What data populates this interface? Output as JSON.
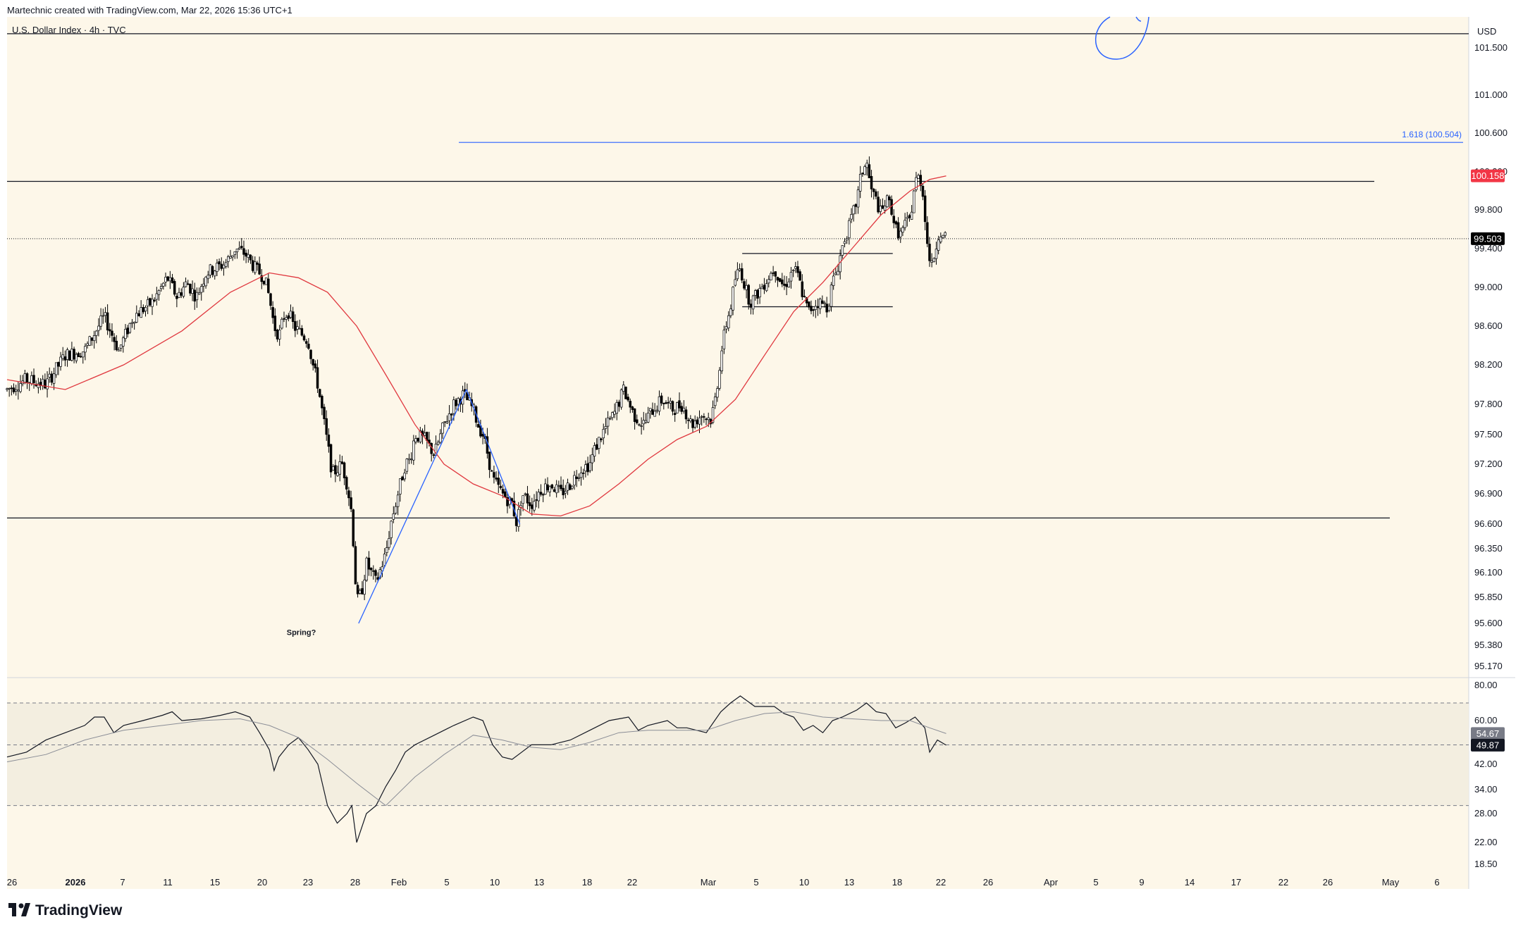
{
  "header": {
    "credit": "Martechnic created with TradingView.com, Mar 22, 2026 15:36 UTC+1",
    "symbol": "U.S. Dollar Index · 4h · TVC",
    "currency": "USD"
  },
  "footer": {
    "brand": "TradingView"
  },
  "colors": {
    "background": "#fdf7e9",
    "candle": "#000000",
    "ma": "#e0383f",
    "drawing_blue": "#2962ff",
    "price_badge": "#000000",
    "ma_badge": "#f23645",
    "rsi_band": "#f3eee0"
  },
  "chart_data": [
    {
      "type": "candlestick",
      "title": "U.S. Dollar Index · 4h · TVC",
      "ylim": [
        95.0,
        101.9
      ],
      "y_ticks": [
        "101.500",
        "101.000",
        "100.600",
        "100.200",
        "99.800",
        "99.400",
        "99.000",
        "98.600",
        "98.200",
        "97.800",
        "97.500",
        "97.200",
        "96.900",
        "96.600",
        "96.350",
        "96.100",
        "95.850",
        "95.600",
        "95.380",
        "95.170"
      ],
      "x_ticks": [
        "26",
        "2026",
        "7",
        "11",
        "15",
        "20",
        "23",
        "28",
        "Feb",
        "5",
        "10",
        "13",
        "18",
        "22",
        "Mar",
        "5",
        "10",
        "13",
        "18",
        "22",
        "26",
        "Apr",
        "5",
        "9",
        "14",
        "17",
        "22",
        "26",
        "May",
        "6"
      ],
      "close_path": [
        [
          0,
          97.95
        ],
        [
          20,
          98.05
        ],
        [
          40,
          98.0
        ],
        [
          60,
          98.3
        ],
        [
          80,
          98.35
        ],
        [
          100,
          98.7
        ],
        [
          115,
          98.35
        ],
        [
          130,
          98.7
        ],
        [
          150,
          98.85
        ],
        [
          165,
          99.1
        ],
        [
          175,
          98.9
        ],
        [
          185,
          99.05
        ],
        [
          195,
          98.9
        ],
        [
          205,
          99.15
        ],
        [
          215,
          99.2
        ],
        [
          225,
          99.25
        ],
        [
          235,
          99.4
        ],
        [
          245,
          99.35
        ],
        [
          255,
          99.2
        ],
        [
          265,
          99.1
        ],
        [
          270,
          98.9
        ],
        [
          275,
          98.6
        ],
        [
          280,
          98.5
        ],
        [
          285,
          98.7
        ],
        [
          290,
          98.75
        ],
        [
          295,
          98.6
        ],
        [
          300,
          98.55
        ],
        [
          305,
          98.5
        ],
        [
          310,
          98.45
        ],
        [
          315,
          98.2
        ],
        [
          320,
          98.0
        ],
        [
          325,
          97.7
        ],
        [
          330,
          97.4
        ],
        [
          335,
          97.1
        ],
        [
          340,
          97.15
        ],
        [
          345,
          97.2
        ],
        [
          350,
          97.0
        ],
        [
          355,
          96.7
        ],
        [
          360,
          95.8
        ],
        [
          365,
          95.9
        ],
        [
          370,
          96.2
        ],
        [
          380,
          96.0
        ],
        [
          390,
          96.3
        ],
        [
          395,
          96.6
        ],
        [
          400,
          96.8
        ],
        [
          405,
          97.0
        ],
        [
          410,
          97.2
        ],
        [
          415,
          97.25
        ],
        [
          420,
          97.5
        ],
        [
          430,
          97.45
        ],
        [
          440,
          97.3
        ],
        [
          450,
          97.6
        ],
        [
          460,
          97.8
        ],
        [
          470,
          97.9
        ],
        [
          480,
          97.75
        ],
        [
          485,
          97.6
        ],
        [
          490,
          97.5
        ],
        [
          495,
          97.3
        ],
        [
          500,
          97.05
        ],
        [
          510,
          96.9
        ],
        [
          520,
          96.8
        ],
        [
          525,
          96.6
        ],
        [
          530,
          96.9
        ],
        [
          540,
          96.8
        ],
        [
          550,
          96.95
        ],
        [
          560,
          97.0
        ],
        [
          570,
          96.9
        ],
        [
          580,
          97.0
        ],
        [
          590,
          97.15
        ],
        [
          600,
          97.2
        ],
        [
          605,
          97.35
        ],
        [
          615,
          97.55
        ],
        [
          625,
          97.7
        ],
        [
          635,
          97.95
        ],
        [
          645,
          97.7
        ],
        [
          655,
          97.6
        ],
        [
          665,
          97.75
        ],
        [
          675,
          97.85
        ],
        [
          685,
          97.75
        ],
        [
          695,
          97.8
        ],
        [
          705,
          97.6
        ],
        [
          715,
          97.7
        ],
        [
          725,
          97.65
        ],
        [
          730,
          97.9
        ],
        [
          735,
          98.3
        ],
        [
          740,
          98.6
        ],
        [
          745,
          98.8
        ],
        [
          750,
          99.1
        ],
        [
          755,
          99.2
        ],
        [
          760,
          99.0
        ],
        [
          765,
          98.85
        ],
        [
          770,
          98.9
        ],
        [
          780,
          99.05
        ],
        [
          790,
          99.2
        ],
        [
          800,
          99.0
        ],
        [
          810,
          99.2
        ],
        [
          815,
          99.1
        ],
        [
          820,
          98.9
        ],
        [
          825,
          98.75
        ],
        [
          835,
          98.85
        ],
        [
          845,
          98.8
        ],
        [
          850,
          99.05
        ],
        [
          855,
          99.2
        ],
        [
          862,
          99.5
        ],
        [
          868,
          99.65
        ],
        [
          875,
          99.9
        ],
        [
          880,
          100.2
        ],
        [
          885,
          100.3
        ],
        [
          890,
          100.0
        ],
        [
          895,
          99.9
        ],
        [
          900,
          99.75
        ],
        [
          905,
          99.9
        ],
        [
          910,
          99.85
        ],
        [
          915,
          99.6
        ],
        [
          920,
          99.55
        ],
        [
          925,
          99.65
        ],
        [
          930,
          99.7
        ],
        [
          935,
          100.1
        ],
        [
          940,
          100.15
        ],
        [
          944,
          99.9
        ],
        [
          948,
          99.4
        ],
        [
          952,
          99.2
        ],
        [
          956,
          99.4
        ],
        [
          960,
          99.6
        ],
        [
          964,
          99.5
        ],
        [
          967,
          99.503
        ]
      ],
      "ma_path": [
        [
          0,
          98.05
        ],
        [
          60,
          97.95
        ],
        [
          120,
          98.2
        ],
        [
          180,
          98.55
        ],
        [
          230,
          98.95
        ],
        [
          270,
          99.15
        ],
        [
          300,
          99.1
        ],
        [
          330,
          98.95
        ],
        [
          360,
          98.6
        ],
        [
          390,
          98.1
        ],
        [
          420,
          97.6
        ],
        [
          450,
          97.2
        ],
        [
          480,
          97.0
        ],
        [
          510,
          96.88
        ],
        [
          540,
          96.7
        ],
        [
          570,
          96.68
        ],
        [
          600,
          96.78
        ],
        [
          630,
          97.0
        ],
        [
          660,
          97.25
        ],
        [
          690,
          97.45
        ],
        [
          720,
          97.58
        ],
        [
          750,
          97.85
        ],
        [
          780,
          98.3
        ],
        [
          810,
          98.75
        ],
        [
          840,
          99.05
        ],
        [
          870,
          99.4
        ],
        [
          900,
          99.75
        ],
        [
          930,
          100.0
        ],
        [
          950,
          100.12
        ],
        [
          967,
          100.158
        ]
      ],
      "candle_x_range": [
        0,
        967
      ],
      "ma_badge": "100.158",
      "current_price": "99.503",
      "horizontal_levels": [
        {
          "name": "top-resistance",
          "price": 101.65
        },
        {
          "name": "upper-resistance",
          "price": 100.1
        },
        {
          "name": "lower-support",
          "price": 96.66
        }
      ],
      "range_boxes": [
        {
          "top": 99.35,
          "bottom": 98.8,
          "x_start": 757,
          "x_end": 912
        }
      ],
      "fib_level": {
        "label": "1.618 (100.504)",
        "price": 100.504
      },
      "swing_lines": [
        {
          "from": [
            362,
            95.6
          ],
          "to": [
            473,
            97.95
          ]
        },
        {
          "from": [
            473,
            97.95
          ],
          "to": [
            528,
            96.6
          ]
        }
      ],
      "annotation": {
        "text": "Spring?",
        "x": 303,
        "price": 95.52
      }
    },
    {
      "type": "line",
      "name": "RSI",
      "ylim": [
        16,
        82
      ],
      "y_ticks": [
        "80.00",
        "60.00",
        "42.00",
        "34.00",
        "28.00",
        "22.00",
        "18.50"
      ],
      "upper_band": 70,
      "lower_band": 30,
      "midline": 50,
      "rsi_path": [
        [
          0,
          45
        ],
        [
          20,
          47
        ],
        [
          40,
          52
        ],
        [
          60,
          55
        ],
        [
          80,
          58
        ],
        [
          90,
          62
        ],
        [
          100,
          62
        ],
        [
          110,
          55
        ],
        [
          120,
          58
        ],
        [
          140,
          60
        ],
        [
          160,
          63
        ],
        [
          170,
          65
        ],
        [
          180,
          60
        ],
        [
          200,
          61
        ],
        [
          220,
          63
        ],
        [
          235,
          65
        ],
        [
          250,
          62
        ],
        [
          260,
          55
        ],
        [
          270,
          48
        ],
        [
          275,
          40
        ],
        [
          280,
          45
        ],
        [
          290,
          50
        ],
        [
          300,
          53
        ],
        [
          310,
          48
        ],
        [
          320,
          42
        ],
        [
          330,
          30
        ],
        [
          340,
          26
        ],
        [
          350,
          28
        ],
        [
          355,
          30
        ],
        [
          360,
          22
        ],
        [
          370,
          28
        ],
        [
          380,
          30
        ],
        [
          390,
          35
        ],
        [
          400,
          40
        ],
        [
          410,
          47
        ],
        [
          420,
          50
        ],
        [
          440,
          54
        ],
        [
          460,
          58
        ],
        [
          480,
          62
        ],
        [
          490,
          60
        ],
        [
          500,
          50
        ],
        [
          510,
          45
        ],
        [
          520,
          44
        ],
        [
          530,
          47
        ],
        [
          540,
          50
        ],
        [
          560,
          50
        ],
        [
          580,
          52
        ],
        [
          600,
          56
        ],
        [
          620,
          60
        ],
        [
          640,
          62
        ],
        [
          650,
          56
        ],
        [
          660,
          58
        ],
        [
          680,
          60
        ],
        [
          690,
          57
        ],
        [
          700,
          57
        ],
        [
          720,
          55
        ],
        [
          735,
          65
        ],
        [
          745,
          70
        ],
        [
          755,
          74
        ],
        [
          770,
          68
        ],
        [
          790,
          68
        ],
        [
          800,
          64
        ],
        [
          810,
          62
        ],
        [
          820,
          56
        ],
        [
          830,
          58
        ],
        [
          840,
          55
        ],
        [
          850,
          60
        ],
        [
          860,
          62
        ],
        [
          875,
          66
        ],
        [
          885,
          70
        ],
        [
          895,
          65
        ],
        [
          905,
          64
        ],
        [
          915,
          57
        ],
        [
          925,
          59
        ],
        [
          935,
          62
        ],
        [
          945,
          57
        ],
        [
          950,
          47
        ],
        [
          958,
          52
        ],
        [
          967,
          49.87
        ]
      ],
      "rsi_ma_path": [
        [
          0,
          43
        ],
        [
          40,
          46
        ],
        [
          80,
          52
        ],
        [
          120,
          56
        ],
        [
          160,
          58
        ],
        [
          200,
          60
        ],
        [
          240,
          61
        ],
        [
          270,
          58
        ],
        [
          300,
          53
        ],
        [
          330,
          44
        ],
        [
          360,
          36
        ],
        [
          390,
          30
        ],
        [
          420,
          38
        ],
        [
          450,
          46
        ],
        [
          480,
          54
        ],
        [
          510,
          52
        ],
        [
          540,
          49
        ],
        [
          570,
          48
        ],
        [
          600,
          51
        ],
        [
          630,
          55
        ],
        [
          660,
          56
        ],
        [
          690,
          56
        ],
        [
          720,
          56
        ],
        [
          750,
          60
        ],
        [
          780,
          64
        ],
        [
          810,
          65
        ],
        [
          840,
          62
        ],
        [
          870,
          61
        ],
        [
          900,
          60
        ],
        [
          930,
          60
        ],
        [
          950,
          57
        ],
        [
          967,
          54.67
        ]
      ],
      "rsi_value": "49.87",
      "rsi_ma_value": "54.67"
    }
  ]
}
